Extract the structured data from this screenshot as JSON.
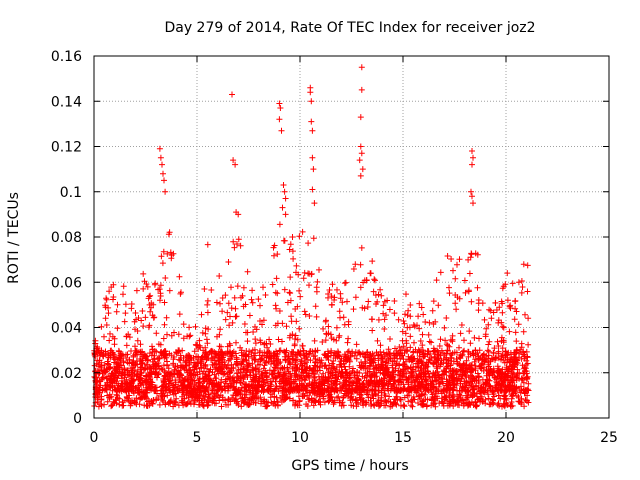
{
  "chart_data": {
    "type": "scatter",
    "title": "Day 279 of 2014, Rate Of TEC Index for receiver joz2",
    "xlabel": "GPS time / hours",
    "ylabel": "ROTI / TECUs",
    "xlim": [
      0,
      25
    ],
    "ylim": [
      0,
      0.16
    ],
    "x_ticks": [
      0,
      5,
      10,
      15,
      20,
      25
    ],
    "x_tick_labels": [
      "0",
      "5",
      "10",
      "15",
      "20",
      "25"
    ],
    "y_ticks": [
      0,
      0.02,
      0.04,
      0.06,
      0.08,
      0.1,
      0.12,
      0.14,
      0.16
    ],
    "y_tick_labels": [
      "0",
      "0.02",
      "0.04",
      "0.06",
      "0.08",
      "0.1",
      "0.12",
      "0.14",
      "0.16"
    ],
    "grid": true,
    "marker": "+",
    "marker_color": "#ff0000",
    "series": [
      {
        "name": "ROTI",
        "x_range": [
          0,
          21.1
        ],
        "baseline_range": [
          0.005,
          0.03
        ],
        "envelope_hours": [
          0,
          0.5,
          1,
          1.5,
          2,
          2.5,
          3,
          3.5,
          4,
          4.5,
          5,
          5.5,
          6,
          6.5,
          7,
          7.5,
          8,
          8.5,
          9,
          9.5,
          10,
          10.5,
          11,
          11.5,
          12,
          12.5,
          13,
          13.5,
          14,
          14.5,
          15,
          15.5,
          16,
          16.5,
          17,
          17.5,
          18,
          18.5,
          19,
          19.5,
          20,
          20.5,
          21
        ],
        "envelope_max": [
          0.032,
          0.058,
          0.062,
          0.058,
          0.06,
          0.068,
          0.06,
          0.085,
          0.08,
          0.042,
          0.045,
          0.08,
          0.065,
          0.07,
          0.088,
          0.065,
          0.062,
          0.07,
          0.092,
          0.085,
          0.082,
          0.09,
          0.068,
          0.062,
          0.06,
          0.072,
          0.08,
          0.07,
          0.06,
          0.055,
          0.055,
          0.062,
          0.048,
          0.055,
          0.082,
          0.065,
          0.082,
          0.08,
          0.05,
          0.055,
          0.065,
          0.07,
          0.07
        ],
        "spikes": [
          {
            "x": 3.2,
            "y": 0.119
          },
          {
            "x": 3.25,
            "y": 0.115
          },
          {
            "x": 3.3,
            "y": 0.112
          },
          {
            "x": 3.35,
            "y": 0.108
          },
          {
            "x": 3.4,
            "y": 0.105
          },
          {
            "x": 3.45,
            "y": 0.1
          },
          {
            "x": 6.7,
            "y": 0.143
          },
          {
            "x": 6.75,
            "y": 0.114
          },
          {
            "x": 6.85,
            "y": 0.112
          },
          {
            "x": 6.9,
            "y": 0.091
          },
          {
            "x": 7.0,
            "y": 0.09
          },
          {
            "x": 9.0,
            "y": 0.139
          },
          {
            "x": 9.05,
            "y": 0.137
          },
          {
            "x": 9.0,
            "y": 0.132
          },
          {
            "x": 9.1,
            "y": 0.127
          },
          {
            "x": 9.2,
            "y": 0.103
          },
          {
            "x": 9.25,
            "y": 0.1
          },
          {
            "x": 9.3,
            "y": 0.097
          },
          {
            "x": 9.15,
            "y": 0.093
          },
          {
            "x": 9.3,
            "y": 0.09
          },
          {
            "x": 10.5,
            "y": 0.146
          },
          {
            "x": 10.5,
            "y": 0.144
          },
          {
            "x": 10.55,
            "y": 0.14
          },
          {
            "x": 10.55,
            "y": 0.131
          },
          {
            "x": 10.6,
            "y": 0.127
          },
          {
            "x": 10.6,
            "y": 0.115
          },
          {
            "x": 10.65,
            "y": 0.11
          },
          {
            "x": 10.6,
            "y": 0.101
          },
          {
            "x": 10.7,
            "y": 0.095
          },
          {
            "x": 13.0,
            "y": 0.155
          },
          {
            "x": 13.0,
            "y": 0.145
          },
          {
            "x": 12.95,
            "y": 0.133
          },
          {
            "x": 12.95,
            "y": 0.12
          },
          {
            "x": 13.0,
            "y": 0.117
          },
          {
            "x": 12.9,
            "y": 0.114
          },
          {
            "x": 13.05,
            "y": 0.11
          },
          {
            "x": 12.95,
            "y": 0.107
          },
          {
            "x": 18.35,
            "y": 0.118
          },
          {
            "x": 18.4,
            "y": 0.115
          },
          {
            "x": 18.35,
            "y": 0.112
          },
          {
            "x": 18.3,
            "y": 0.1
          },
          {
            "x": 18.35,
            "y": 0.098
          },
          {
            "x": 18.4,
            "y": 0.095
          }
        ]
      }
    ]
  }
}
